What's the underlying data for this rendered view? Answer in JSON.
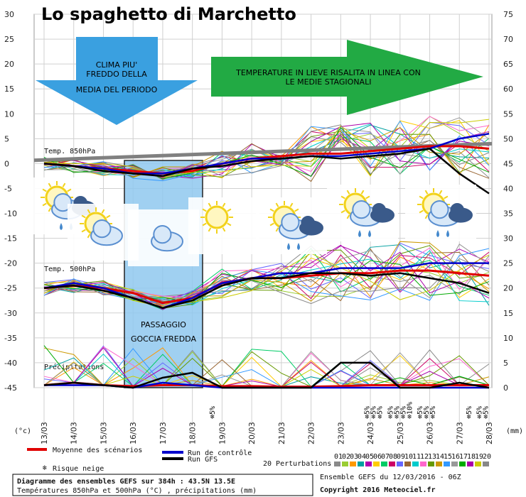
{
  "chart_data": {
    "type": "line",
    "title": "Lo spaghetto di Marchetto",
    "x": [
      "13/03",
      "14/03",
      "15/03",
      "16/03",
      "17/03",
      "18/03",
      "19/03",
      "20/03",
      "21/03",
      "22/03",
      "23/03",
      "24/03",
      "25/03",
      "26/03",
      "27/03",
      "28/03"
    ],
    "left_axis": {
      "unit": "(°c)",
      "ylim": [
        -45,
        30
      ],
      "ticks": [
        30,
        25,
        20,
        15,
        10,
        5,
        0,
        -5,
        -10,
        -15,
        -20,
        -25,
        -30,
        -35,
        -40,
        -45
      ]
    },
    "right_axis": {
      "unit": "(mm)",
      "ylim": [
        0,
        75
      ],
      "ticks": [
        75,
        70,
        65,
        60,
        55,
        50,
        45,
        40,
        35,
        30,
        25,
        20,
        15,
        10,
        5,
        0
      ]
    },
    "panel_labels": {
      "t850": "Temp. 850hPa",
      "t500": "Temp. 500hPa",
      "prec": "Précipitations"
    },
    "series": [
      {
        "name": "Moyenne des scénarios",
        "color": "#e00000",
        "t850": [
          0,
          -0.5,
          -1,
          -1.5,
          -2,
          -1.5,
          0,
          1,
          1.5,
          2,
          2,
          2.5,
          3,
          3.5,
          3.5,
          3
        ],
        "t500": [
          -25,
          -24.5,
          -25,
          -26,
          -28,
          -27,
          -24,
          -23,
          -23,
          -22.5,
          -22,
          -22,
          -21.5,
          -21.5,
          -22,
          -22.5
        ],
        "prec": [
          0.5,
          1,
          0.5,
          0.3,
          0.5,
          0.5,
          0.3,
          0.3,
          0.2,
          0.2,
          0.3,
          0.5,
          0.5,
          0.5,
          0.5,
          0.5
        ]
      },
      {
        "name": "Run de contrôle",
        "color": "#0000cc",
        "t850": [
          0,
          -0.5,
          -1,
          -2,
          -2,
          -1,
          0,
          1,
          1,
          1.5,
          1.5,
          2,
          2.5,
          3,
          5,
          6
        ],
        "t500": [
          -25,
          -24,
          -25,
          -27,
          -29,
          -27,
          -24,
          -23,
          -22,
          -22,
          -21,
          -21,
          -21,
          -20,
          -20,
          -20
        ],
        "prec": [
          0.5,
          0.5,
          0.5,
          0,
          1,
          0.5,
          0,
          0,
          0,
          0,
          0,
          0,
          0,
          0,
          0,
          0
        ]
      },
      {
        "name": "Run GFS",
        "color": "#000000",
        "t850": [
          0,
          -0.5,
          -1.5,
          -2,
          -2.5,
          -1,
          -0.5,
          0.5,
          1,
          1.5,
          1,
          1.5,
          2,
          3,
          -2,
          -6
        ],
        "t500": [
          -25,
          -24.5,
          -25.5,
          -27,
          -29,
          -27.5,
          -24.5,
          -23,
          -23,
          -22,
          -22,
          -22.5,
          -22,
          -23,
          -24,
          -26
        ],
        "prec": [
          0.5,
          1,
          0.5,
          0,
          2,
          3,
          0,
          0,
          0,
          0,
          5,
          5,
          0,
          0,
          1,
          0
        ]
      }
    ],
    "perturbations": {
      "label": "20 Perturbations",
      "codes": [
        "01",
        "02",
        "03",
        "04",
        "05",
        "06",
        "07",
        "08",
        "09",
        "10",
        "11",
        "12",
        "13",
        "14",
        "15",
        "16",
        "17",
        "18",
        "19",
        "20"
      ],
      "colors": [
        "#8a8a8a",
        "#9acd32",
        "#ff9900",
        "#00a0a0",
        "#b000b0",
        "#ffcc00",
        "#00cc66",
        "#cc0066",
        "#6666ff",
        "#996633",
        "#00cccc",
        "#ff66cc",
        "#669900",
        "#cc9900",
        "#3399ff",
        "#999999",
        "#00aa00",
        "#aa00aa",
        "#cccc00",
        "#888888"
      ]
    },
    "snow_risk": {
      "label": "Risque neige",
      "marks": [
        {
          "x": "19/03",
          "text": "5%"
        },
        {
          "x": "24/03",
          "text": "5%"
        },
        {
          "x": "24/03",
          "text": "5%"
        },
        {
          "x": "24/03",
          "text": "5%"
        },
        {
          "x": "25/03",
          "text": "5%"
        },
        {
          "x": "25/03",
          "text": "5%"
        },
        {
          "x": "25/03",
          "text": "5%"
        },
        {
          "x": "25/03",
          "text": "10%"
        },
        {
          "x": "26/03",
          "text": "5%"
        },
        {
          "x": "26/03",
          "text": "5%"
        },
        {
          "x": "26/03",
          "text": "5%"
        },
        {
          "x": "27/03",
          "text": "5%"
        },
        {
          "x": "28/03",
          "text": "5%"
        },
        {
          "x": "28/03",
          "text": "5%"
        }
      ]
    },
    "annotations": {
      "cold_arrow": "CLIMA PIU' FREDDO DELLA MEDIA DEL PERIODO",
      "warm_arrow": "TEMPERATURE IN LIEVE RISALITA IN LINEA CON LE MEDIE STAGIONALI",
      "box": "PASSAGGIO GOCCIA FREDDA"
    },
    "legend": {
      "mean": "Moyenne des scénarios",
      "control": "Run de contrôle",
      "gfs": "Run GFS"
    },
    "footer": {
      "line1": "Diagramme des ensembles GEFS sur 384h : 43.5N 13.5E",
      "line2": "Températures 850hPa et 500hPa (°C) , précipitations (mm)",
      "ens": "Ensemble GEFS du 12/03/2016 - 06Z",
      "copy": "Copyright 2016 Meteociel.fr"
    },
    "colors": {
      "cold_arrow": "#3aa0e0",
      "warm_arrow": "#22aa44",
      "mean_ref": "#808080",
      "box": "#8fc8ee"
    }
  }
}
